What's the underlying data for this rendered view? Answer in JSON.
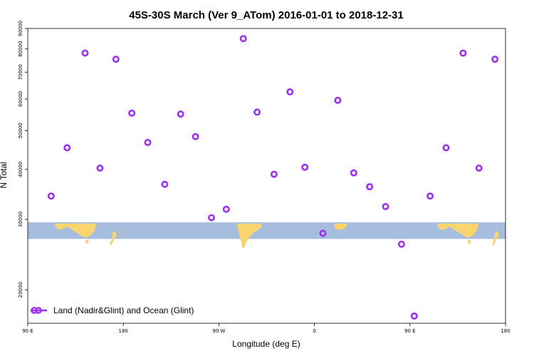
{
  "chart_data": {
    "type": "scatter",
    "title": "45S-30S March (Ver 9_ATom)   2016-01-01 to 2018-12-31",
    "xlabel": "Longitude (deg E)",
    "ylabel": "N Total",
    "xlim": [
      90,
      540
    ],
    "ylim_log": [
      16500,
      90000
    ],
    "x_ticks": [
      {
        "value": 90,
        "label": "90 E"
      },
      {
        "value": 180,
        "label": "180"
      },
      {
        "value": 270,
        "label": "90 W"
      },
      {
        "value": 360,
        "label": "0"
      },
      {
        "value": 450,
        "label": "90 E"
      },
      {
        "value": 540,
        "label": "180"
      }
    ],
    "y_ticks": [
      {
        "value": 20000,
        "label": "20000"
      },
      {
        "value": 30000,
        "label": "30000"
      },
      {
        "value": 40000,
        "label": "40000"
      },
      {
        "value": 50000,
        "label": "50000"
      },
      {
        "value": 60000,
        "label": "60000"
      },
      {
        "value": 70000,
        "label": "70000"
      },
      {
        "value": 80000,
        "label": "80000"
      },
      {
        "value": 90000,
        "label": "90000"
      }
    ],
    "map_band": {
      "lat_range": "45S-30S",
      "y_top": 29500,
      "y_bottom": 26800
    },
    "legend": {
      "label": "Land (Nadir&Glint) and Ocean (Glint)",
      "placement": "bottom-left"
    },
    "series": [
      {
        "name": "Land (Nadir&Glint) and Ocean (Glint)",
        "color": "#9b30f0",
        "points": [
          {
            "x": 112,
            "y": 34300
          },
          {
            "x": 127,
            "y": 45300
          },
          {
            "x": 144,
            "y": 78100
          },
          {
            "x": 158,
            "y": 40300
          },
          {
            "x": 173,
            "y": 75400
          },
          {
            "x": 188,
            "y": 55300
          },
          {
            "x": 203,
            "y": 46700
          },
          {
            "x": 219,
            "y": 36700
          },
          {
            "x": 234,
            "y": 55000
          },
          {
            "x": 248,
            "y": 48300
          },
          {
            "x": 263,
            "y": 30300
          },
          {
            "x": 277,
            "y": 31800
          },
          {
            "x": 293,
            "y": 84900
          },
          {
            "x": 306,
            "y": 55600
          },
          {
            "x": 322,
            "y": 38900
          },
          {
            "x": 337,
            "y": 62500
          },
          {
            "x": 351,
            "y": 40500
          },
          {
            "x": 368,
            "y": 27700
          },
          {
            "x": 382,
            "y": 59500
          },
          {
            "x": 397,
            "y": 39200
          },
          {
            "x": 412,
            "y": 36200
          },
          {
            "x": 427,
            "y": 32300
          },
          {
            "x": 442,
            "y": 26000
          },
          {
            "x": 454,
            "y": 17200
          },
          {
            "x": 469,
            "y": 34300
          },
          {
            "x": 484,
            "y": 45300
          },
          {
            "x": 500,
            "y": 78100
          },
          {
            "x": 515,
            "y": 40300
          },
          {
            "x": 530,
            "y": 75400
          }
        ]
      }
    ]
  }
}
